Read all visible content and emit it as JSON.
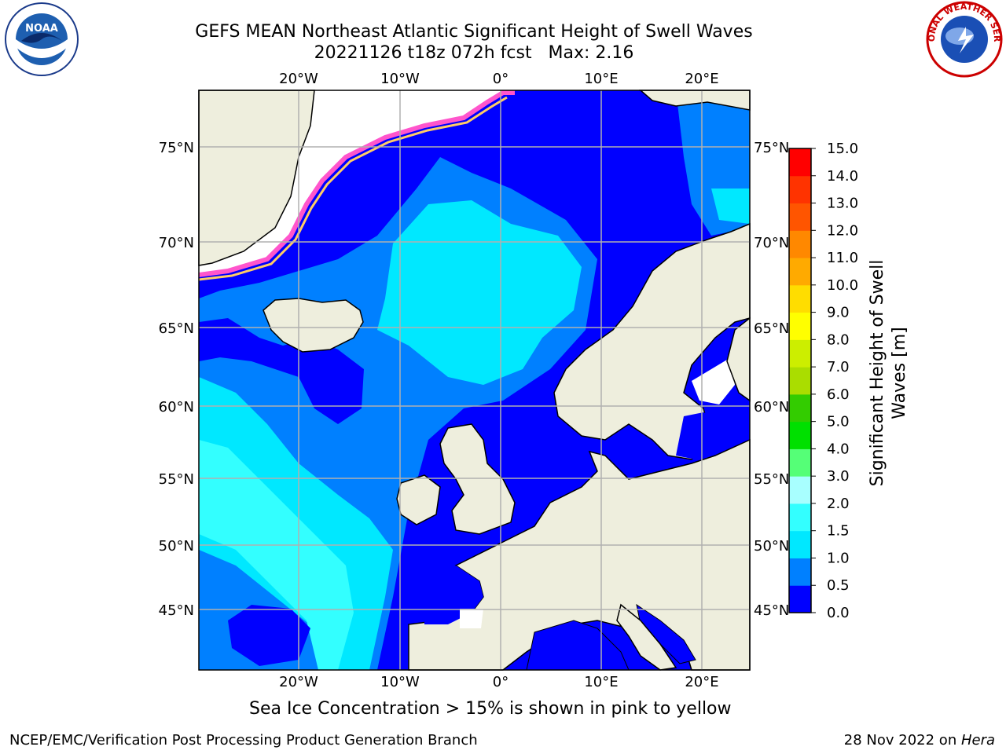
{
  "title_line1": "GEFS MEAN Northeast Atlantic Significant Height of Swell Waves",
  "title_line2": "20221126 t18z 072h fcst   Max: 2.16",
  "map": {
    "lon_labels": [
      "20°W",
      "10°W",
      "0°",
      "10°E",
      "20°E"
    ],
    "lat_labels_left": [
      "75°N",
      "70°N",
      "65°N",
      "60°N",
      "55°N",
      "50°N",
      "45°N"
    ],
    "lat_labels_right": [
      "75°N",
      "70°N",
      "65°N",
      "60°N",
      "55°N",
      "50°N",
      "45°N"
    ],
    "ocean_color": "#0000ff",
    "land_color": "#eeeedd",
    "grid_color": "#b0b0b0"
  },
  "colorbar": {
    "label": "Significant Height of Swell Waves [m]",
    "ticks": [
      "0.0",
      "0.5",
      "1.0",
      "1.5",
      "2.0",
      "3.0",
      "4.0",
      "5.0",
      "6.0",
      "7.0",
      "8.0",
      "9.0",
      "10.0",
      "11.0",
      "12.0",
      "13.0",
      "14.0",
      "15.0"
    ],
    "colors": [
      "#0000ff",
      "#0080ff",
      "#00e8ff",
      "#33ffff",
      "#a8ffff",
      "#55ff77",
      "#00e000",
      "#33cc00",
      "#aadd00",
      "#ccee00",
      "#ffff00",
      "#ffdd00",
      "#ffaa00",
      "#ff8800",
      "#ff5500",
      "#ff3300",
      "#ff0000"
    ]
  },
  "caption": "Sea Ice Concentration > 15% is shown in pink to yellow",
  "footer_left": "NCEP/EMC/Verification Post Processing Product Generation Branch",
  "footer_date": "28 Nov 2022 on ",
  "footer_host": "Hera",
  "logos": {
    "left": "NOAA",
    "right": "NATIONAL WEATHER SERVICE"
  }
}
